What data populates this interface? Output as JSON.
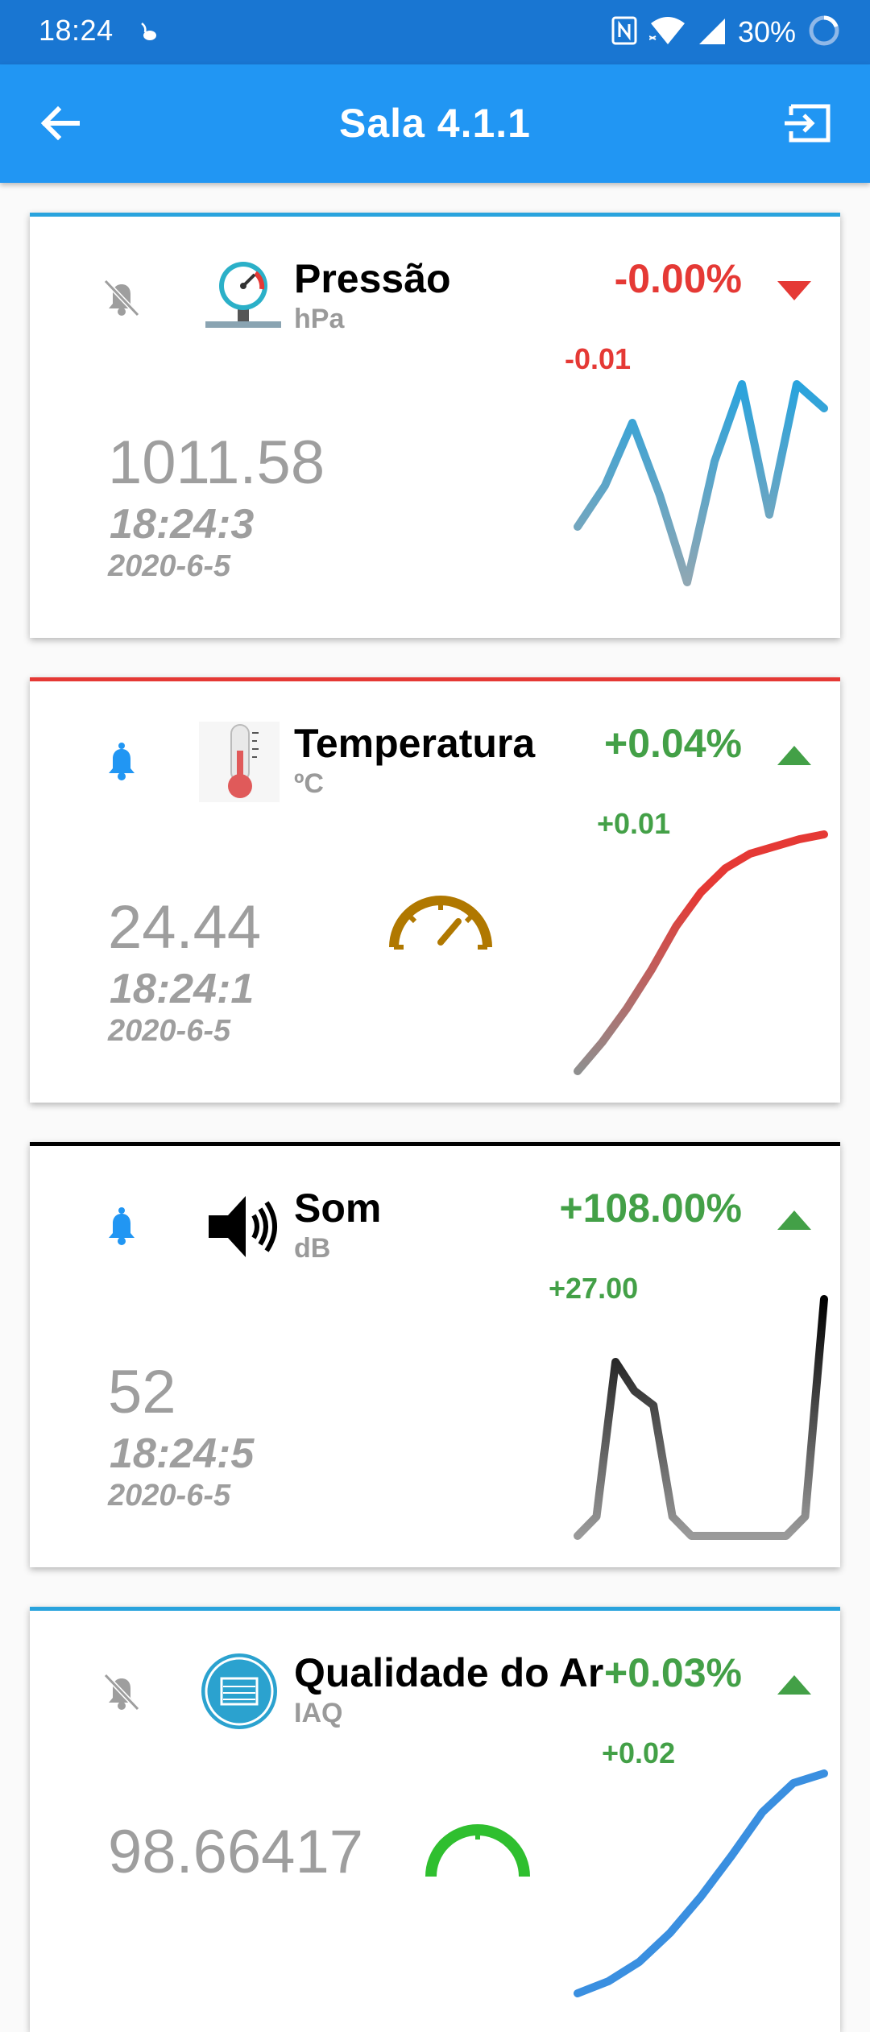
{
  "status_bar": {
    "time": "18:24",
    "battery": "30%",
    "icons": [
      "nfc-icon",
      "wifi-icon",
      "signal-icon",
      "battery-icon"
    ]
  },
  "app_bar": {
    "title": "Sala 4.1.1",
    "back_icon": "arrow-back-icon",
    "logout_icon": "exit-icon"
  },
  "colors": {
    "status_bar": "#1976d2",
    "app_bar": "#2196f3",
    "negative": "#e53935",
    "positive": "#43a047",
    "notification_active": "#2196f3",
    "notification_off": "#9e9e9e"
  },
  "cards": [
    {
      "name": "Pressão",
      "unit": "hPa",
      "percent_change": "-0.00%",
      "absolute_change": "-0.01",
      "direction": "down",
      "value": "1011.58",
      "time": "18:24:3",
      "date": "2020-6-5",
      "notifications": "off",
      "icon": "pressure-gauge-icon",
      "accent": "#29a3dd",
      "sparkline": [
        0.35,
        0.52,
        0.78,
        0.48,
        0.12,
        0.62,
        0.94,
        0.4,
        0.94,
        0.84
      ]
    },
    {
      "name": "Temperatura",
      "unit": "ºC",
      "percent_change": "+0.04%",
      "absolute_change": "+0.01",
      "direction": "up",
      "value": "24.44",
      "time": "18:24:1",
      "date": "2020-6-5",
      "notifications": "on",
      "icon": "thermometer-icon",
      "accent": "#e53935",
      "sparkline": [
        0.02,
        0.14,
        0.28,
        0.44,
        0.62,
        0.76,
        0.86,
        0.92,
        0.95,
        0.98,
        1.0
      ]
    },
    {
      "name": "Som",
      "unit": "dB",
      "percent_change": "+108.00%",
      "absolute_change": "+27.00",
      "direction": "up",
      "value": "52",
      "time": "18:24:5",
      "date": "2020-6-5",
      "notifications": "on",
      "icon": "speaker-icon",
      "accent": "#000000",
      "sparkline": [
        0.02,
        0.1,
        0.74,
        0.62,
        0.56,
        0.1,
        0.02,
        0.02,
        0.02,
        0.02,
        0.02,
        0.02,
        0.1,
        1.0
      ]
    },
    {
      "name": "Qualidade do Ar",
      "unit": "IAQ",
      "percent_change": "+0.03%",
      "absolute_change": "+0.02",
      "direction": "up",
      "value": "98.66417",
      "time": "",
      "date": "",
      "notifications": "off",
      "icon": "air-quality-icon",
      "accent": "#29a3dd",
      "sparkline": [
        0.05,
        0.1,
        0.18,
        0.3,
        0.45,
        0.62,
        0.8,
        0.92,
        0.96
      ]
    }
  ]
}
